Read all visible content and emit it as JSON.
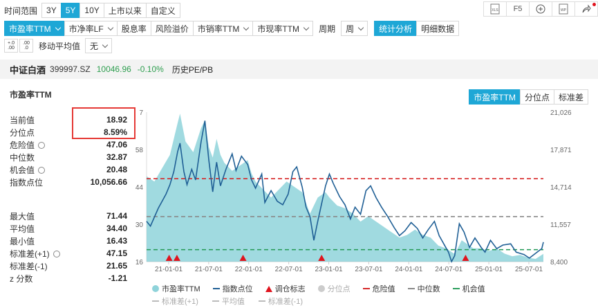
{
  "range": {
    "label": "时间范围",
    "options": [
      "3Y",
      "5Y",
      "10Y",
      "上市以来",
      "自定义"
    ],
    "active": 1
  },
  "top_right": {
    "xls": "XLS",
    "f5": "F5",
    "wp": "WP"
  },
  "metric_tabs": [
    "市盈率TTM",
    "市净率LF",
    "股息率",
    "风险溢价",
    "市销率TTM",
    "市现率TTM"
  ],
  "period": {
    "label": "周期",
    "value": "周"
  },
  "view_tabs": [
    "统计分析",
    "明细数据"
  ],
  "ma": {
    "label": "移动平均值",
    "value": "无",
    "dec1": "+.0\n.00",
    "dec2": ".00\n.0"
  },
  "index": {
    "name": "中证白酒",
    "code": "399997.SZ",
    "price": "10046.96",
    "change": "-0.10%",
    "mode": "历史PE/PB"
  },
  "panel_title": "市盈率TTM",
  "chart_tabs": [
    "市盈率TTM",
    "分位点",
    "标准差"
  ],
  "stats_top": [
    {
      "label": "当前值",
      "value": "18.92"
    },
    {
      "label": "分位点",
      "value": "8.59%"
    },
    {
      "label": "危险值",
      "value": "47.06"
    },
    {
      "label": "中位数",
      "value": "32.87"
    },
    {
      "label": "机会值",
      "value": "20.48"
    },
    {
      "label": "指数点位",
      "value": "10,056.66"
    }
  ],
  "stats_bottom": [
    {
      "label": "最大值",
      "value": "71.44"
    },
    {
      "label": "平均值",
      "value": "34.40"
    },
    {
      "label": "最小值",
      "value": "16.43"
    },
    {
      "label": "标准差(+1)",
      "value": "47.15"
    },
    {
      "label": "标准差(-1)",
      "value": "21.65"
    },
    {
      "label": "z 分数",
      "value": "-1.21"
    }
  ],
  "legend": {
    "row1": [
      "市盈率TTM",
      "指数点位",
      "调仓标志",
      "分位点",
      "危险值",
      "中位数",
      "机会值"
    ],
    "row2": [
      "标准差(+1)",
      "平均值",
      "标准差(-1)"
    ]
  },
  "colors": {
    "accent": "#1ea7d6",
    "area": "#8fd3da",
    "index_line": "#1f5f95",
    "danger": "#d62728",
    "median": "#888888",
    "chance": "#2a9d5c",
    "up": "#2e9e4f",
    "rebalance": "#e0141e"
  },
  "chart_data": {
    "type": "area",
    "x_ticks": [
      "21-01-01",
      "21-07-01",
      "22-01-01",
      "22-07-01",
      "23-01-01",
      "23-07-01",
      "24-01-01",
      "24-07-01",
      "25-01-01",
      "25-07-01"
    ],
    "y_left_ticks": [
      "16",
      "30",
      "44",
      "58",
      "7"
    ],
    "y_right_ticks": [
      "8,400",
      "11,557",
      "14,714",
      "17,871",
      "21,026"
    ],
    "y_left_range": [
      16,
      72
    ],
    "y_right_range": [
      8400,
      21026
    ],
    "x_range": [
      2020.7,
      2025.8
    ],
    "reference_lines": {
      "danger": 47.06,
      "median": 32.87,
      "chance": 20.48
    },
    "pe_series": [
      [
        2020.7,
        48
      ],
      [
        2020.8,
        46
      ],
      [
        2020.9,
        51
      ],
      [
        2021.0,
        56
      ],
      [
        2021.05,
        62
      ],
      [
        2021.1,
        68
      ],
      [
        2021.13,
        71.4
      ],
      [
        2021.2,
        61
      ],
      [
        2021.3,
        57
      ],
      [
        2021.4,
        66
      ],
      [
        2021.45,
        69
      ],
      [
        2021.5,
        59
      ],
      [
        2021.55,
        55
      ],
      [
        2021.6,
        62
      ],
      [
        2021.65,
        56
      ],
      [
        2021.7,
        53
      ],
      [
        2021.8,
        50
      ],
      [
        2021.9,
        52
      ],
      [
        2022.0,
        54
      ],
      [
        2022.05,
        49
      ],
      [
        2022.1,
        46
      ],
      [
        2022.2,
        43
      ],
      [
        2022.3,
        40
      ],
      [
        2022.4,
        43
      ],
      [
        2022.5,
        46
      ],
      [
        2022.6,
        44
      ],
      [
        2022.7,
        42
      ],
      [
        2022.75,
        38
      ],
      [
        2022.8,
        34
      ],
      [
        2022.85,
        37
      ],
      [
        2022.9,
        40
      ],
      [
        2023.0,
        42
      ],
      [
        2023.05,
        40
      ],
      [
        2023.15,
        37
      ],
      [
        2023.25,
        36
      ],
      [
        2023.35,
        34
      ],
      [
        2023.45,
        31
      ],
      [
        2023.55,
        33
      ],
      [
        2023.65,
        31
      ],
      [
        2023.75,
        29
      ],
      [
        2023.85,
        27
      ],
      [
        2023.95,
        25
      ],
      [
        2024.05,
        26
      ],
      [
        2024.15,
        28
      ],
      [
        2024.25,
        26
      ],
      [
        2024.35,
        25
      ],
      [
        2024.45,
        22
      ],
      [
        2024.55,
        21
      ],
      [
        2024.65,
        19
      ],
      [
        2024.7,
        21
      ],
      [
        2024.75,
        24
      ],
      [
        2024.8,
        23
      ],
      [
        2024.9,
        21
      ],
      [
        2025.0,
        21
      ],
      [
        2025.1,
        20
      ],
      [
        2025.2,
        21
      ],
      [
        2025.3,
        19
      ],
      [
        2025.4,
        18
      ],
      [
        2025.5,
        18.5
      ],
      [
        2025.6,
        17.5
      ],
      [
        2025.7,
        17
      ],
      [
        2025.8,
        18.9
      ]
    ],
    "index_series": [
      [
        2020.7,
        11800
      ],
      [
        2020.75,
        11400
      ],
      [
        2020.85,
        12900
      ],
      [
        2020.95,
        14100
      ],
      [
        2021.0,
        14900
      ],
      [
        2021.05,
        16000
      ],
      [
        2021.1,
        17700
      ],
      [
        2021.13,
        18400
      ],
      [
        2021.18,
        16000
      ],
      [
        2021.22,
        14900
      ],
      [
        2021.28,
        16200
      ],
      [
        2021.33,
        15300
      ],
      [
        2021.4,
        18500
      ],
      [
        2021.45,
        20300
      ],
      [
        2021.5,
        17000
      ],
      [
        2021.55,
        14300
      ],
      [
        2021.6,
        16800
      ],
      [
        2021.65,
        14800
      ],
      [
        2021.72,
        16200
      ],
      [
        2021.8,
        17500
      ],
      [
        2021.85,
        16100
      ],
      [
        2021.92,
        17300
      ],
      [
        2022.0,
        16600
      ],
      [
        2022.05,
        15300
      ],
      [
        2022.1,
        14600
      ],
      [
        2022.18,
        15800
      ],
      [
        2022.22,
        13400
      ],
      [
        2022.3,
        14400
      ],
      [
        2022.38,
        13500
      ],
      [
        2022.45,
        13200
      ],
      [
        2022.52,
        14100
      ],
      [
        2022.58,
        16000
      ],
      [
        2022.63,
        16400
      ],
      [
        2022.7,
        14700
      ],
      [
        2022.75,
        13000
      ],
      [
        2022.8,
        12200
      ],
      [
        2022.85,
        10200
      ],
      [
        2022.9,
        11800
      ],
      [
        2023.0,
        14800
      ],
      [
        2023.05,
        15800
      ],
      [
        2023.1,
        15000
      ],
      [
        2023.18,
        13900
      ],
      [
        2023.25,
        13200
      ],
      [
        2023.32,
        12000
      ],
      [
        2023.38,
        13000
      ],
      [
        2023.45,
        12400
      ],
      [
        2023.52,
        14400
      ],
      [
        2023.58,
        14800
      ],
      [
        2023.65,
        13800
      ],
      [
        2023.72,
        13000
      ],
      [
        2023.8,
        12200
      ],
      [
        2023.88,
        11300
      ],
      [
        2023.95,
        10600
      ],
      [
        2024.02,
        11000
      ],
      [
        2024.1,
        11700
      ],
      [
        2024.18,
        11200
      ],
      [
        2024.25,
        10400
      ],
      [
        2024.32,
        11100
      ],
      [
        2024.4,
        11800
      ],
      [
        2024.46,
        10600
      ],
      [
        2024.52,
        9900
      ],
      [
        2024.58,
        9200
      ],
      [
        2024.62,
        8400
      ],
      [
        2024.66,
        8900
      ],
      [
        2024.72,
        11600
      ],
      [
        2024.78,
        10900
      ],
      [
        2024.85,
        9600
      ],
      [
        2024.92,
        10400
      ],
      [
        2025.0,
        9600
      ],
      [
        2025.05,
        9200
      ],
      [
        2025.12,
        10200
      ],
      [
        2025.2,
        9500
      ],
      [
        2025.28,
        9800
      ],
      [
        2025.38,
        9900
      ],
      [
        2025.45,
        9200
      ],
      [
        2025.55,
        9000
      ],
      [
        2025.62,
        8700
      ],
      [
        2025.7,
        9100
      ],
      [
        2025.78,
        9500
      ],
      [
        2025.8,
        10050
      ]
    ],
    "rebalance_marks": [
      2020.99,
      2021.09,
      2021.94,
      2022.95,
      2024.8
    ]
  }
}
